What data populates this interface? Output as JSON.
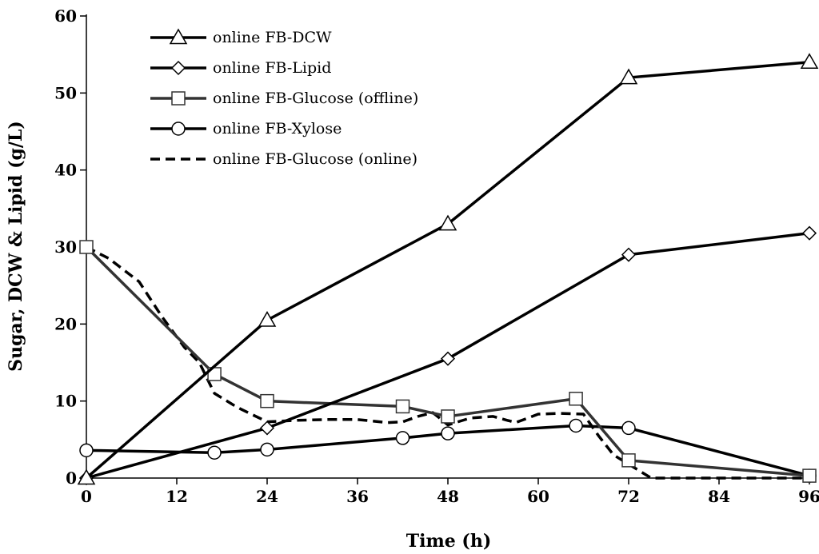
{
  "chart_data": {
    "type": "line",
    "title": "",
    "xlabel": "Time (h)",
    "ylabel": "Sugar, DCW & Lipid (g/L)",
    "xlim": [
      0,
      96
    ],
    "ylim": [
      0,
      60
    ],
    "xticks": [
      0,
      12,
      24,
      36,
      48,
      60,
      72,
      84,
      96
    ],
    "yticks": [
      0,
      10,
      20,
      30,
      40,
      50,
      60
    ],
    "grid": false,
    "legend_position": "top-left",
    "series": [
      {
        "name": "online FB-DCW",
        "marker": "triangle",
        "line": "solid",
        "color": "#000000",
        "points": [
          [
            0,
            0
          ],
          [
            24,
            20.5
          ],
          [
            48,
            33
          ],
          [
            72,
            52
          ],
          [
            96,
            54
          ]
        ]
      },
      {
        "name": "online FB-Lipid",
        "marker": "diamond",
        "line": "solid",
        "color": "#000000",
        "points": [
          [
            0,
            0
          ],
          [
            24,
            6.5
          ],
          [
            48,
            15.5
          ],
          [
            72,
            29
          ],
          [
            96,
            31.8
          ]
        ]
      },
      {
        "name": "online FB-Glucose (offline)",
        "marker": "square",
        "line": "solid",
        "color": "#333333",
        "points": [
          [
            0,
            30
          ],
          [
            17,
            13.5
          ],
          [
            24,
            10
          ],
          [
            42,
            9.3
          ],
          [
            48,
            8
          ],
          [
            65,
            10.3
          ],
          [
            72,
            2.3
          ],
          [
            96,
            0.3
          ]
        ]
      },
      {
        "name": "online FB-Xylose",
        "marker": "circle",
        "line": "solid",
        "color": "#000000",
        "points": [
          [
            0,
            3.6
          ],
          [
            17,
            3.3
          ],
          [
            24,
            3.7
          ],
          [
            42,
            5.2
          ],
          [
            48,
            5.8
          ],
          [
            65,
            6.8
          ],
          [
            72,
            6.5
          ],
          [
            96,
            0.3
          ]
        ]
      },
      {
        "name": "online FB-Glucose (online)",
        "marker": "none",
        "line": "dashed",
        "color": "#000000",
        "points": [
          [
            0,
            30
          ],
          [
            3,
            28.5
          ],
          [
            7,
            25.5
          ],
          [
            10,
            21
          ],
          [
            13,
            17
          ],
          [
            15,
            15
          ],
          [
            17,
            11
          ],
          [
            20,
            9.2
          ],
          [
            24,
            7.3
          ],
          [
            28,
            7.5
          ],
          [
            32,
            7.6
          ],
          [
            36,
            7.6
          ],
          [
            40,
            7.2
          ],
          [
            42,
            7.3
          ],
          [
            44,
            8
          ],
          [
            46,
            8.5
          ],
          [
            48,
            6.9
          ],
          [
            51,
            7.8
          ],
          [
            54,
            8
          ],
          [
            57,
            7.2
          ],
          [
            60,
            8.3
          ],
          [
            63,
            8.4
          ],
          [
            66,
            8.3
          ],
          [
            68,
            5.5
          ],
          [
            70,
            3
          ],
          [
            72,
            1.8
          ],
          [
            75,
            0
          ],
          [
            80,
            0
          ],
          [
            90,
            0
          ],
          [
            96,
            0
          ]
        ]
      }
    ]
  }
}
